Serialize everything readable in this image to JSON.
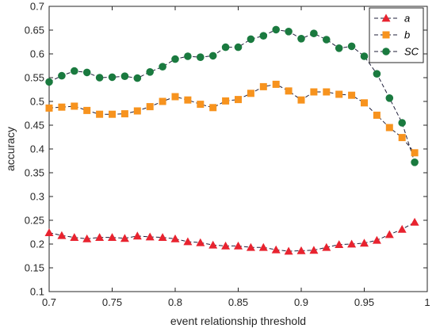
{
  "chart_data": {
    "type": "line",
    "title": "",
    "xlabel": "event relationship threshold",
    "ylabel": "accuracy",
    "xlim": [
      0.7,
      1.0
    ],
    "ylim": [
      0.1,
      0.7
    ],
    "xticks": [
      0.7,
      0.75,
      0.8,
      0.85,
      0.9,
      0.95,
      1.0
    ],
    "xtick_labels": [
      "0.7",
      "0.75",
      "0.8",
      "0.85",
      "0.9",
      "0.95",
      "1"
    ],
    "yticks": [
      0.1,
      0.15,
      0.2,
      0.25,
      0.3,
      0.35,
      0.4,
      0.45,
      0.5,
      0.55,
      0.6,
      0.65,
      0.7
    ],
    "ytick_labels": [
      "0.1",
      "0.15",
      "0.2",
      "0.25",
      "0.3",
      "0.35",
      "0.4",
      "0.45",
      "0.5",
      "0.55",
      "0.6",
      "0.65",
      "0.7"
    ],
    "grid": false,
    "legend_position": "top-right",
    "x": [
      0.7,
      0.71,
      0.72,
      0.73,
      0.74,
      0.75,
      0.76,
      0.77,
      0.78,
      0.79,
      0.8,
      0.81,
      0.82,
      0.83,
      0.84,
      0.85,
      0.86,
      0.87,
      0.88,
      0.89,
      0.9,
      0.91,
      0.92,
      0.93,
      0.94,
      0.95,
      0.96,
      0.97,
      0.98,
      0.99
    ],
    "series": [
      {
        "name": "a",
        "color": "#e8232f",
        "marker": "triangle",
        "values": [
          0.224,
          0.218,
          0.214,
          0.211,
          0.214,
          0.214,
          0.212,
          0.217,
          0.215,
          0.214,
          0.211,
          0.205,
          0.203,
          0.198,
          0.196,
          0.196,
          0.193,
          0.193,
          0.188,
          0.185,
          0.186,
          0.187,
          0.193,
          0.199,
          0.2,
          0.202,
          0.208,
          0.22,
          0.231,
          0.246
        ]
      },
      {
        "name": "b",
        "color": "#f7931e",
        "marker": "square",
        "values": [
          0.486,
          0.488,
          0.49,
          0.481,
          0.473,
          0.473,
          0.474,
          0.48,
          0.489,
          0.5,
          0.51,
          0.503,
          0.494,
          0.487,
          0.501,
          0.504,
          0.517,
          0.531,
          0.536,
          0.522,
          0.503,
          0.52,
          0.52,
          0.515,
          0.513,
          0.497,
          0.471,
          0.445,
          0.424,
          0.392
        ]
      },
      {
        "name": "SC",
        "color": "#1a7a3f",
        "marker": "circle",
        "values": [
          0.541,
          0.554,
          0.564,
          0.561,
          0.55,
          0.551,
          0.553,
          0.549,
          0.562,
          0.573,
          0.589,
          0.595,
          0.593,
          0.596,
          0.614,
          0.614,
          0.631,
          0.638,
          0.651,
          0.647,
          0.632,
          0.643,
          0.63,
          0.612,
          0.616,
          0.595,
          0.558,
          0.507,
          0.455,
          0.372
        ]
      }
    ]
  }
}
